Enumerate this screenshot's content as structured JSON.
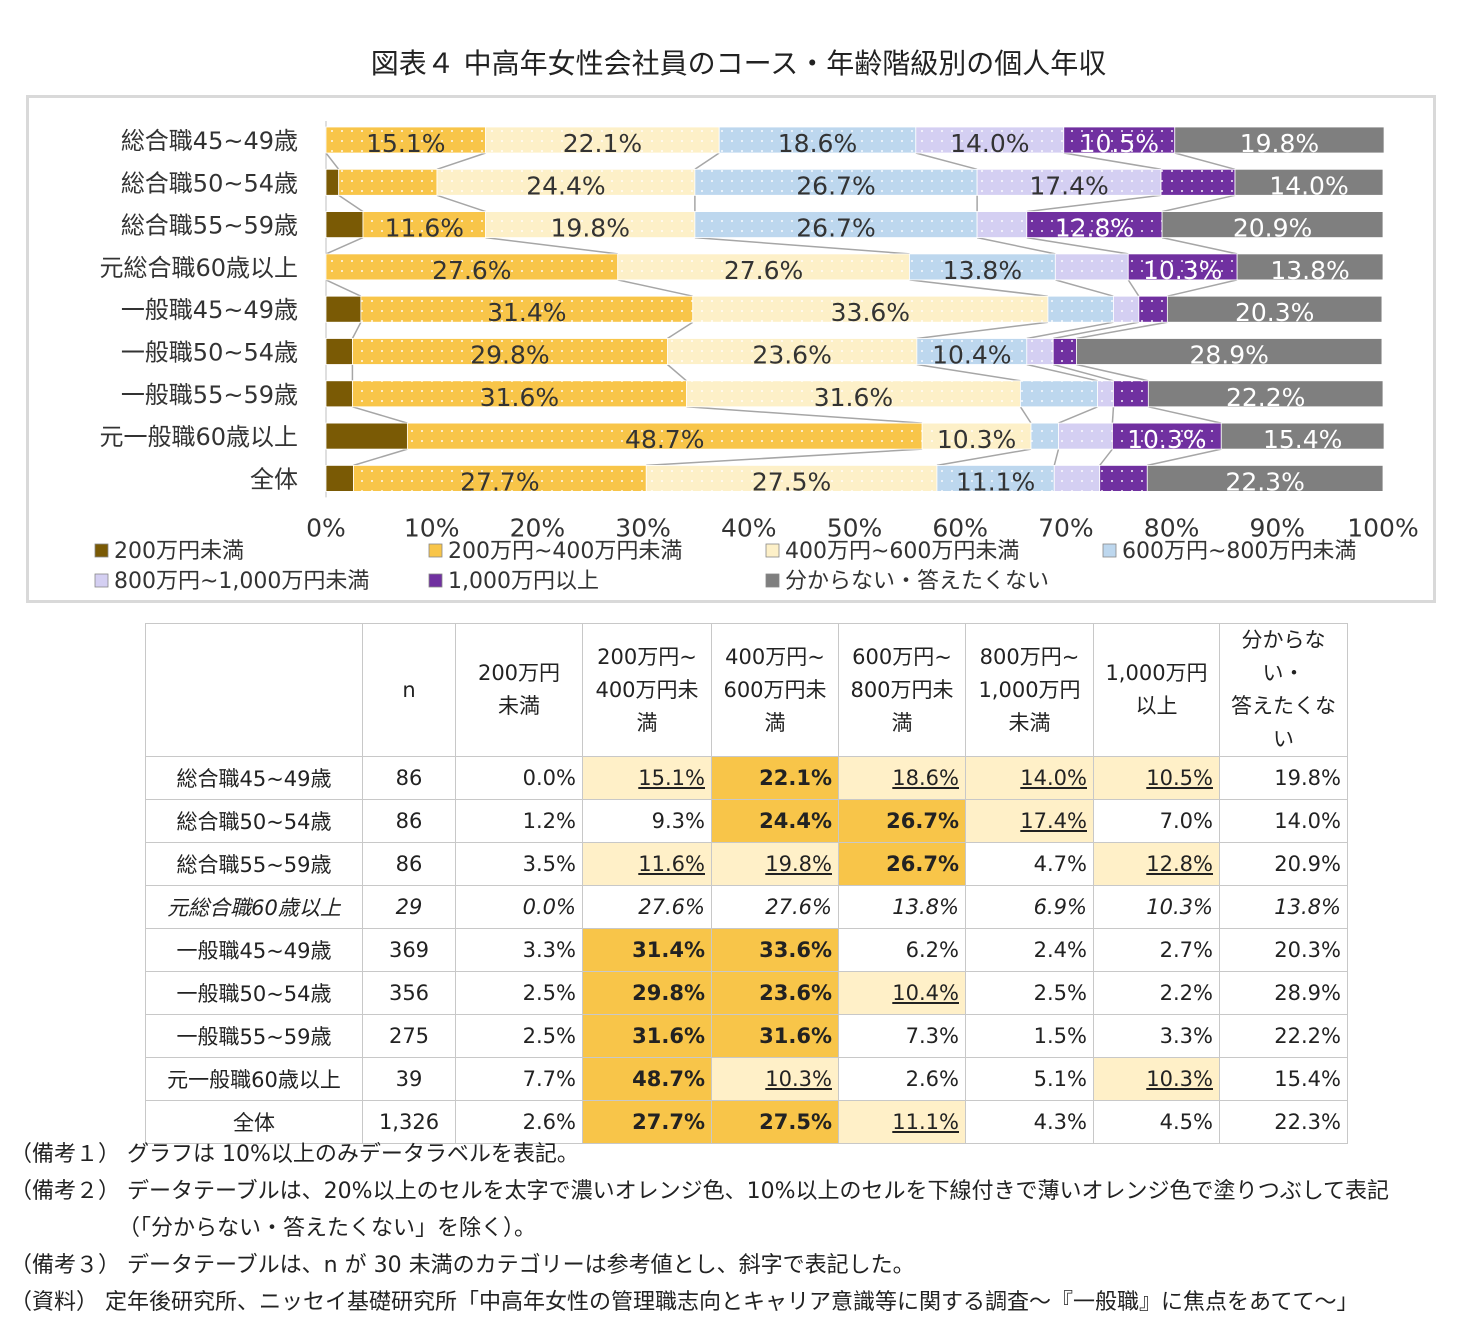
{
  "title": "図表４ 中高年女性会社員のコース・年齢階級別の個人年収",
  "chart_data": {
    "type": "bar",
    "orientation": "horizontal",
    "stacked": "100%",
    "categories": [
      "総合職45~49歳",
      "総合職50~54歳",
      "総合職55~59歳",
      "元総合職60歳以上",
      "一般職45~49歳",
      "一般職50~54歳",
      "一般職55~59歳",
      "元一般職60歳以上",
      "全体"
    ],
    "series": [
      {
        "name": "200万円未満",
        "color": "#7a5a05",
        "values": [
          0.0,
          1.2,
          3.5,
          0.0,
          3.3,
          2.5,
          2.5,
          7.7,
          2.6
        ]
      },
      {
        "name": "200万円~400万円未満",
        "color": "#f8c549",
        "values": [
          15.1,
          9.3,
          11.6,
          27.6,
          31.4,
          29.8,
          31.6,
          48.7,
          27.7
        ]
      },
      {
        "name": "400万円~600万円未満",
        "color": "#fdf0c8",
        "values": [
          22.1,
          24.4,
          19.8,
          27.6,
          33.6,
          23.6,
          31.6,
          10.3,
          27.5
        ]
      },
      {
        "name": "600万円~800万円未満",
        "color": "#bdd7ee",
        "values": [
          18.6,
          26.7,
          26.7,
          13.8,
          6.2,
          10.4,
          7.3,
          2.6,
          11.1
        ]
      },
      {
        "name": "800万円~1,000万円未満",
        "color": "#d4cff2",
        "values": [
          14.0,
          17.4,
          4.7,
          6.9,
          2.4,
          2.5,
          1.5,
          5.1,
          4.3
        ]
      },
      {
        "name": "1,000万円以上",
        "color": "#7030a0",
        "values": [
          10.5,
          7.0,
          12.8,
          10.3,
          2.7,
          2.2,
          3.3,
          10.3,
          4.5
        ]
      },
      {
        "name": "分からない・答えたくない",
        "color": "#7f7f7f",
        "values": [
          19.8,
          14.0,
          20.9,
          13.8,
          20.3,
          28.9,
          22.2,
          15.4,
          22.3
        ]
      }
    ],
    "x_ticks": [
      "0%",
      "10%",
      "20%",
      "30%",
      "40%",
      "50%",
      "60%",
      "70%",
      "80%",
      "90%",
      "100%"
    ],
    "xlim": [
      0,
      100
    ],
    "label_threshold": 10,
    "legend_position": "bottom"
  },
  "table": {
    "headers": [
      "",
      "n",
      "200万円\n未満",
      "200万円~\n400万円未\n満",
      "400万円~\n600万円未\n満",
      "600万円~\n800万円未\n満",
      "800万円~\n1,000万円\n未満",
      "1,000万円\n以上",
      "分からない・\n答えたくない"
    ],
    "rows": [
      {
        "label": "総合職45~49歳",
        "n": "86",
        "cells": [
          "0.0%",
          "15.1%",
          "22.1%",
          "18.6%",
          "14.0%",
          "10.5%",
          "19.8%"
        ],
        "styles": [
          "",
          "light",
          "dark",
          "light",
          "light",
          "light",
          ""
        ],
        "italic": false
      },
      {
        "label": "総合職50~54歳",
        "n": "86",
        "cells": [
          "1.2%",
          "9.3%",
          "24.4%",
          "26.7%",
          "17.4%",
          "7.0%",
          "14.0%"
        ],
        "styles": [
          "",
          "",
          "dark",
          "dark",
          "light",
          "",
          ""
        ],
        "italic": false
      },
      {
        "label": "総合職55~59歳",
        "n": "86",
        "cells": [
          "3.5%",
          "11.6%",
          "19.8%",
          "26.7%",
          "4.7%",
          "12.8%",
          "20.9%"
        ],
        "styles": [
          "",
          "light",
          "light",
          "dark",
          "",
          "light",
          ""
        ],
        "italic": false
      },
      {
        "label": "元総合職60歳以上",
        "n": "29",
        "cells": [
          "0.0%",
          "27.6%",
          "27.6%",
          "13.8%",
          "6.9%",
          "10.3%",
          "13.8%"
        ],
        "styles": [
          "",
          "",
          "",
          "",
          "",
          "",
          ""
        ],
        "italic": true
      },
      {
        "label": "一般職45~49歳",
        "n": "369",
        "cells": [
          "3.3%",
          "31.4%",
          "33.6%",
          "6.2%",
          "2.4%",
          "2.7%",
          "20.3%"
        ],
        "styles": [
          "",
          "dark",
          "dark",
          "",
          "",
          "",
          ""
        ],
        "italic": false
      },
      {
        "label": "一般職50~54歳",
        "n": "356",
        "cells": [
          "2.5%",
          "29.8%",
          "23.6%",
          "10.4%",
          "2.5%",
          "2.2%",
          "28.9%"
        ],
        "styles": [
          "",
          "dark",
          "dark",
          "light",
          "",
          "",
          ""
        ],
        "italic": false
      },
      {
        "label": "一般職55~59歳",
        "n": "275",
        "cells": [
          "2.5%",
          "31.6%",
          "31.6%",
          "7.3%",
          "1.5%",
          "3.3%",
          "22.2%"
        ],
        "styles": [
          "",
          "dark",
          "dark",
          "",
          "",
          "",
          ""
        ],
        "italic": false
      },
      {
        "label": "元一般職60歳以上",
        "n": "39",
        "cells": [
          "7.7%",
          "48.7%",
          "10.3%",
          "2.6%",
          "5.1%",
          "10.3%",
          "15.4%"
        ],
        "styles": [
          "",
          "dark",
          "light",
          "",
          "",
          "light",
          ""
        ],
        "italic": false
      },
      {
        "label": "全体",
        "n": "1,326",
        "cells": [
          "2.6%",
          "27.7%",
          "27.5%",
          "11.1%",
          "4.3%",
          "4.5%",
          "22.3%"
        ],
        "styles": [
          "",
          "dark",
          "dark",
          "light",
          "",
          "",
          ""
        ],
        "italic": false
      }
    ]
  },
  "notes": {
    "note1": "（備考１） グラフは 10%以上のみデータラベルを表記。",
    "note2a": "（備考２） データテーブルは、20%以上のセルを太字で濃いオレンジ色、10%以上のセルを下線付きで薄いオレンジ色で塗りつぶして表記",
    "note2b": "（「分からない・答えたくない」を除く）。",
    "note3": "（備考３） データテーブルは、n が 30 未満のカテゴリーは参考値とし、斜字で表記した。",
    "source": "（資料） 定年後研究所、ニッセイ基礎研究所「中高年女性の管理職志向とキャリア意識等に関する調査～『一般職』に焦点をあてて～」"
  }
}
